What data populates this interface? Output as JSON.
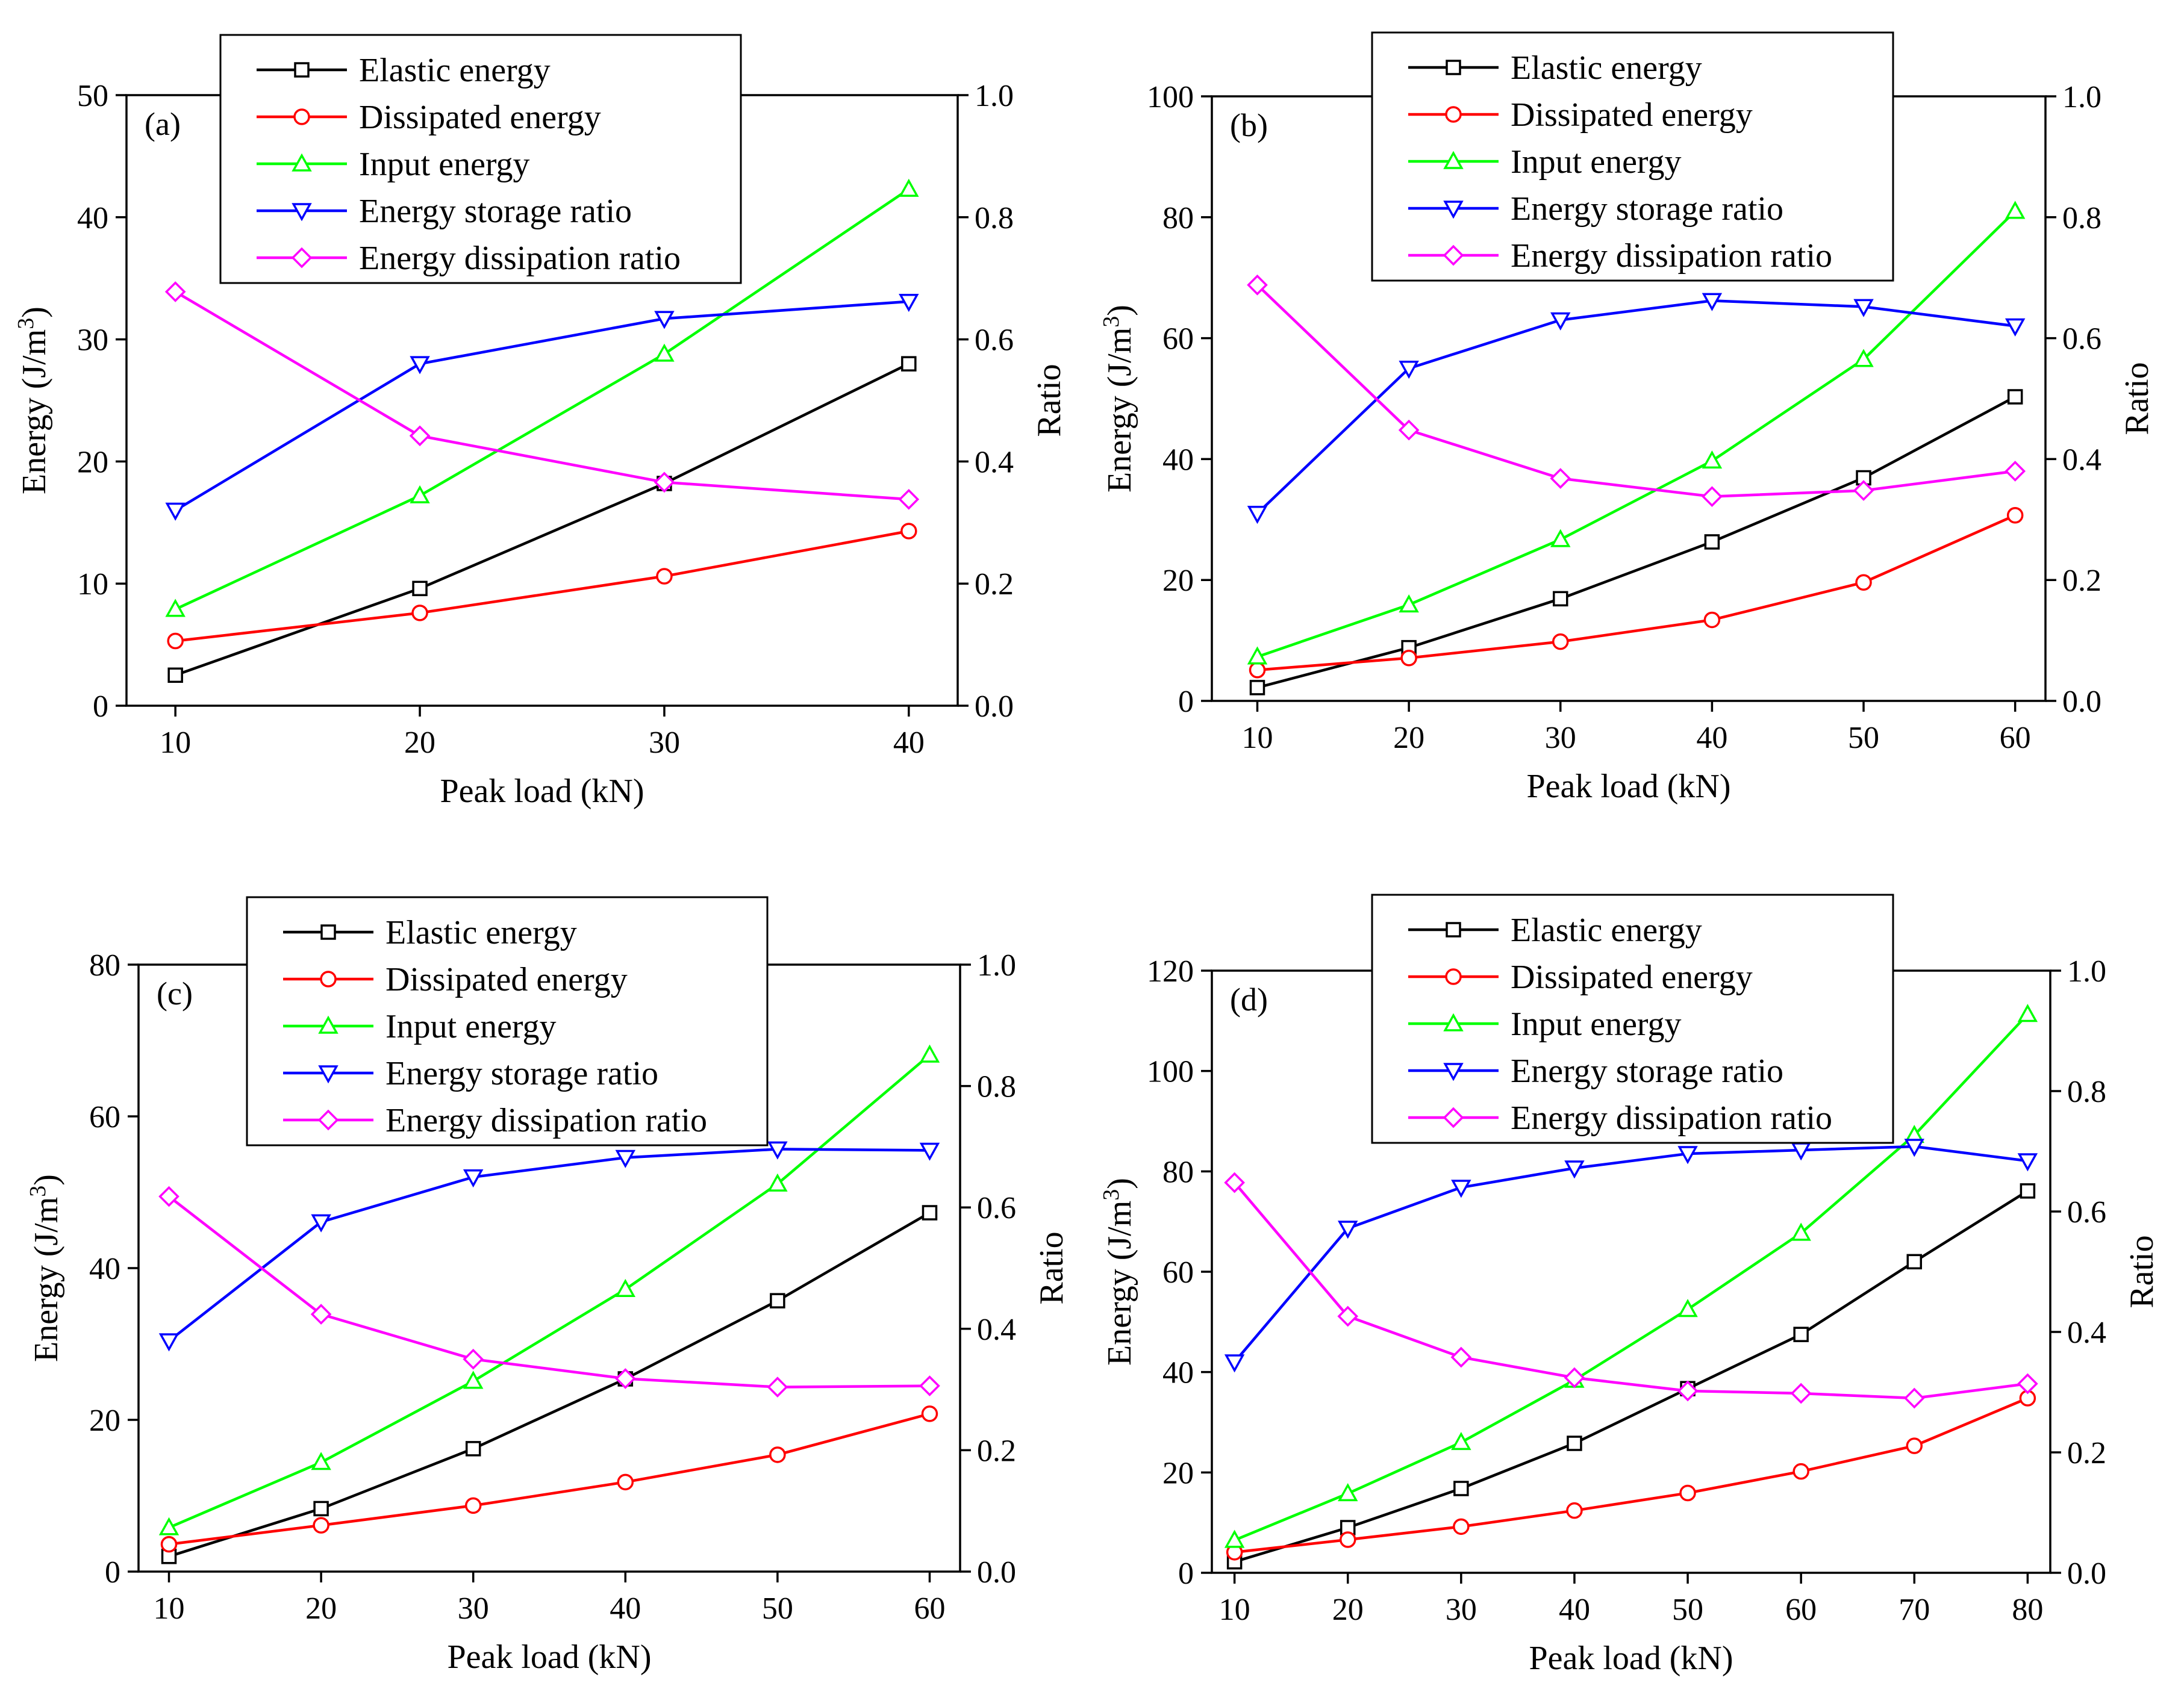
{
  "colors": {
    "elastic": "#000000",
    "dissipated": "#ff0000",
    "input": "#00ff00",
    "storage": "#0000ff",
    "dissipation_ratio": "#ff00ff"
  },
  "chart_data": [
    {
      "type": "line",
      "panel_label": "(a)",
      "xlabel": "Peak load (kN)",
      "ylabel_left": "Energy (J/m",
      "ylabel_left_sup": "3",
      "ylabel_left_close": ")",
      "ylabel_right": "Ratio",
      "x": [
        10,
        20,
        30,
        40
      ],
      "x_ticks": [
        "10",
        "20",
        "30",
        "40"
      ],
      "xlim": [
        8,
        42
      ],
      "ylim_left": [
        0,
        50
      ],
      "y_ticks_left": [
        "0",
        "10",
        "20",
        "30",
        "40",
        "50"
      ],
      "ylim_right": [
        0,
        1
      ],
      "y_ticks_right": [
        "0.0",
        "0.2",
        "0.4",
        "0.6",
        "0.8",
        "1.0"
      ],
      "series": [
        {
          "name": "Elastic energy",
          "axis": "left",
          "marker": "square",
          "color_key": "elastic",
          "values": [
            2.5,
            9.6,
            18.2,
            28.0
          ]
        },
        {
          "name": "Dissipated energy",
          "axis": "left",
          "marker": "circle",
          "color_key": "dissipated",
          "values": [
            5.3,
            7.6,
            10.6,
            14.3
          ]
        },
        {
          "name": "Input energy",
          "axis": "left",
          "marker": "triangle-up",
          "color_key": "input",
          "values": [
            7.9,
            17.2,
            28.8,
            42.3
          ]
        },
        {
          "name": "Energy storage ratio",
          "axis": "right",
          "marker": "triangle-down",
          "color_key": "storage",
          "values": [
            0.32,
            0.56,
            0.634,
            0.662
          ]
        },
        {
          "name": "Energy dissipation ratio",
          "axis": "right",
          "marker": "diamond",
          "color_key": "dissipation_ratio",
          "values": [
            0.678,
            0.442,
            0.366,
            0.338
          ]
        }
      ]
    },
    {
      "type": "line",
      "panel_label": "(b)",
      "xlabel": "Peak load (kN)",
      "ylabel_left": "Energy (J/m",
      "ylabel_left_sup": "3",
      "ylabel_left_close": ")",
      "ylabel_right": "Ratio",
      "x": [
        10,
        20,
        30,
        40,
        50,
        60
      ],
      "x_ticks": [
        "10",
        "20",
        "30",
        "40",
        "50",
        "60"
      ],
      "xlim": [
        7,
        62
      ],
      "ylim_left": [
        0,
        100
      ],
      "y_ticks_left": [
        "0",
        "20",
        "40",
        "60",
        "80",
        "100"
      ],
      "ylim_right": [
        0,
        1
      ],
      "y_ticks_right": [
        "0.0",
        "0.2",
        "0.4",
        "0.6",
        "0.8",
        "1.0"
      ],
      "series": [
        {
          "name": "Elastic energy",
          "axis": "left",
          "marker": "square",
          "color_key": "elastic",
          "values": [
            2.2,
            8.8,
            16.9,
            26.3,
            36.9,
            50.3
          ]
        },
        {
          "name": "Dissipated energy",
          "axis": "left",
          "marker": "circle",
          "color_key": "dissipated",
          "values": [
            5.1,
            7.1,
            9.8,
            13.4,
            19.6,
            30.7
          ]
        },
        {
          "name": "Input energy",
          "axis": "left",
          "marker": "triangle-up",
          "color_key": "input",
          "values": [
            7.3,
            15.9,
            26.7,
            39.7,
            56.5,
            81.0
          ]
        },
        {
          "name": "Energy storage ratio",
          "axis": "right",
          "marker": "triangle-down",
          "color_key": "storage",
          "values": [
            0.31,
            0.55,
            0.63,
            0.662,
            0.652,
            0.62
          ]
        },
        {
          "name": "Energy dissipation ratio",
          "axis": "right",
          "marker": "diamond",
          "color_key": "dissipation_ratio",
          "values": [
            0.688,
            0.448,
            0.368,
            0.338,
            0.348,
            0.38
          ]
        }
      ]
    },
    {
      "type": "line",
      "panel_label": "(c)",
      "xlabel": "Peak load (kN)",
      "ylabel_left": "Energy (J/m",
      "ylabel_left_sup": "3",
      "ylabel_left_close": ")",
      "ylabel_right": "Ratio",
      "x": [
        10,
        20,
        30,
        40,
        50,
        60
      ],
      "x_ticks": [
        "10",
        "20",
        "30",
        "40",
        "50",
        "60"
      ],
      "xlim": [
        8,
        62
      ],
      "ylim_left": [
        0,
        80
      ],
      "y_ticks_left": [
        "0",
        "20",
        "40",
        "60",
        "80"
      ],
      "ylim_right": [
        0,
        1
      ],
      "y_ticks_right": [
        "0.0",
        "0.2",
        "0.4",
        "0.6",
        "0.8",
        "1.0"
      ],
      "series": [
        {
          "name": "Elastic energy",
          "axis": "left",
          "marker": "square",
          "color_key": "elastic",
          "values": [
            2.0,
            8.3,
            16.2,
            25.4,
            35.7,
            47.3
          ]
        },
        {
          "name": "Dissipated energy",
          "axis": "left",
          "marker": "circle",
          "color_key": "dissipated",
          "values": [
            3.6,
            6.1,
            8.7,
            11.8,
            15.4,
            20.8
          ]
        },
        {
          "name": "Input energy",
          "axis": "left",
          "marker": "triangle-up",
          "color_key": "input",
          "values": [
            5.8,
            14.4,
            25.1,
            37.2,
            51.1,
            68.1
          ]
        },
        {
          "name": "Energy storage ratio",
          "axis": "right",
          "marker": "triangle-down",
          "color_key": "storage",
          "values": [
            0.38,
            0.576,
            0.65,
            0.682,
            0.696,
            0.694
          ]
        },
        {
          "name": "Energy dissipation ratio",
          "axis": "right",
          "marker": "diamond",
          "color_key": "dissipation_ratio",
          "values": [
            0.618,
            0.424,
            0.35,
            0.318,
            0.304,
            0.306
          ]
        }
      ]
    },
    {
      "type": "line",
      "panel_label": "(d)",
      "xlabel": "Peak load (kN)",
      "ylabel_left": "Energy (J/m",
      "ylabel_left_sup": "3",
      "ylabel_left_close": ")",
      "ylabel_right": "Ratio",
      "x": [
        10,
        20,
        30,
        40,
        50,
        60,
        70,
        80
      ],
      "x_ticks": [
        "10",
        "20",
        "30",
        "40",
        "50",
        "60",
        "70",
        "80"
      ],
      "xlim": [
        8,
        82
      ],
      "ylim_left": [
        0,
        120
      ],
      "y_ticks_left": [
        "0",
        "20",
        "40",
        "60",
        "80",
        "100",
        "120"
      ],
      "ylim_right": [
        0,
        1
      ],
      "y_ticks_right": [
        "0.0",
        "0.2",
        "0.4",
        "0.6",
        "0.8",
        "1.0"
      ],
      "series": [
        {
          "name": "Elastic energy",
          "axis": "left",
          "marker": "square",
          "color_key": "elastic",
          "values": [
            2.2,
            9.0,
            16.8,
            25.8,
            36.7,
            47.5,
            62.0,
            76.1
          ]
        },
        {
          "name": "Dissipated energy",
          "axis": "left",
          "marker": "circle",
          "color_key": "dissipated",
          "values": [
            4.1,
            6.6,
            9.2,
            12.4,
            15.9,
            20.2,
            25.3,
            34.8
          ]
        },
        {
          "name": "Input energy",
          "axis": "left",
          "marker": "triangle-up",
          "color_key": "input",
          "values": [
            6.5,
            15.8,
            26.0,
            38.4,
            52.5,
            67.7,
            87.2,
            111.3
          ]
        },
        {
          "name": "Energy storage ratio",
          "axis": "right",
          "marker": "triangle-down",
          "color_key": "storage",
          "values": [
            0.35,
            0.572,
            0.64,
            0.672,
            0.696,
            0.702,
            0.708,
            0.684
          ]
        },
        {
          "name": "Energy dissipation ratio",
          "axis": "right",
          "marker": "diamond",
          "color_key": "dissipation_ratio",
          "values": [
            0.648,
            0.426,
            0.358,
            0.324,
            0.302,
            0.298,
            0.29,
            0.314
          ]
        }
      ]
    }
  ]
}
